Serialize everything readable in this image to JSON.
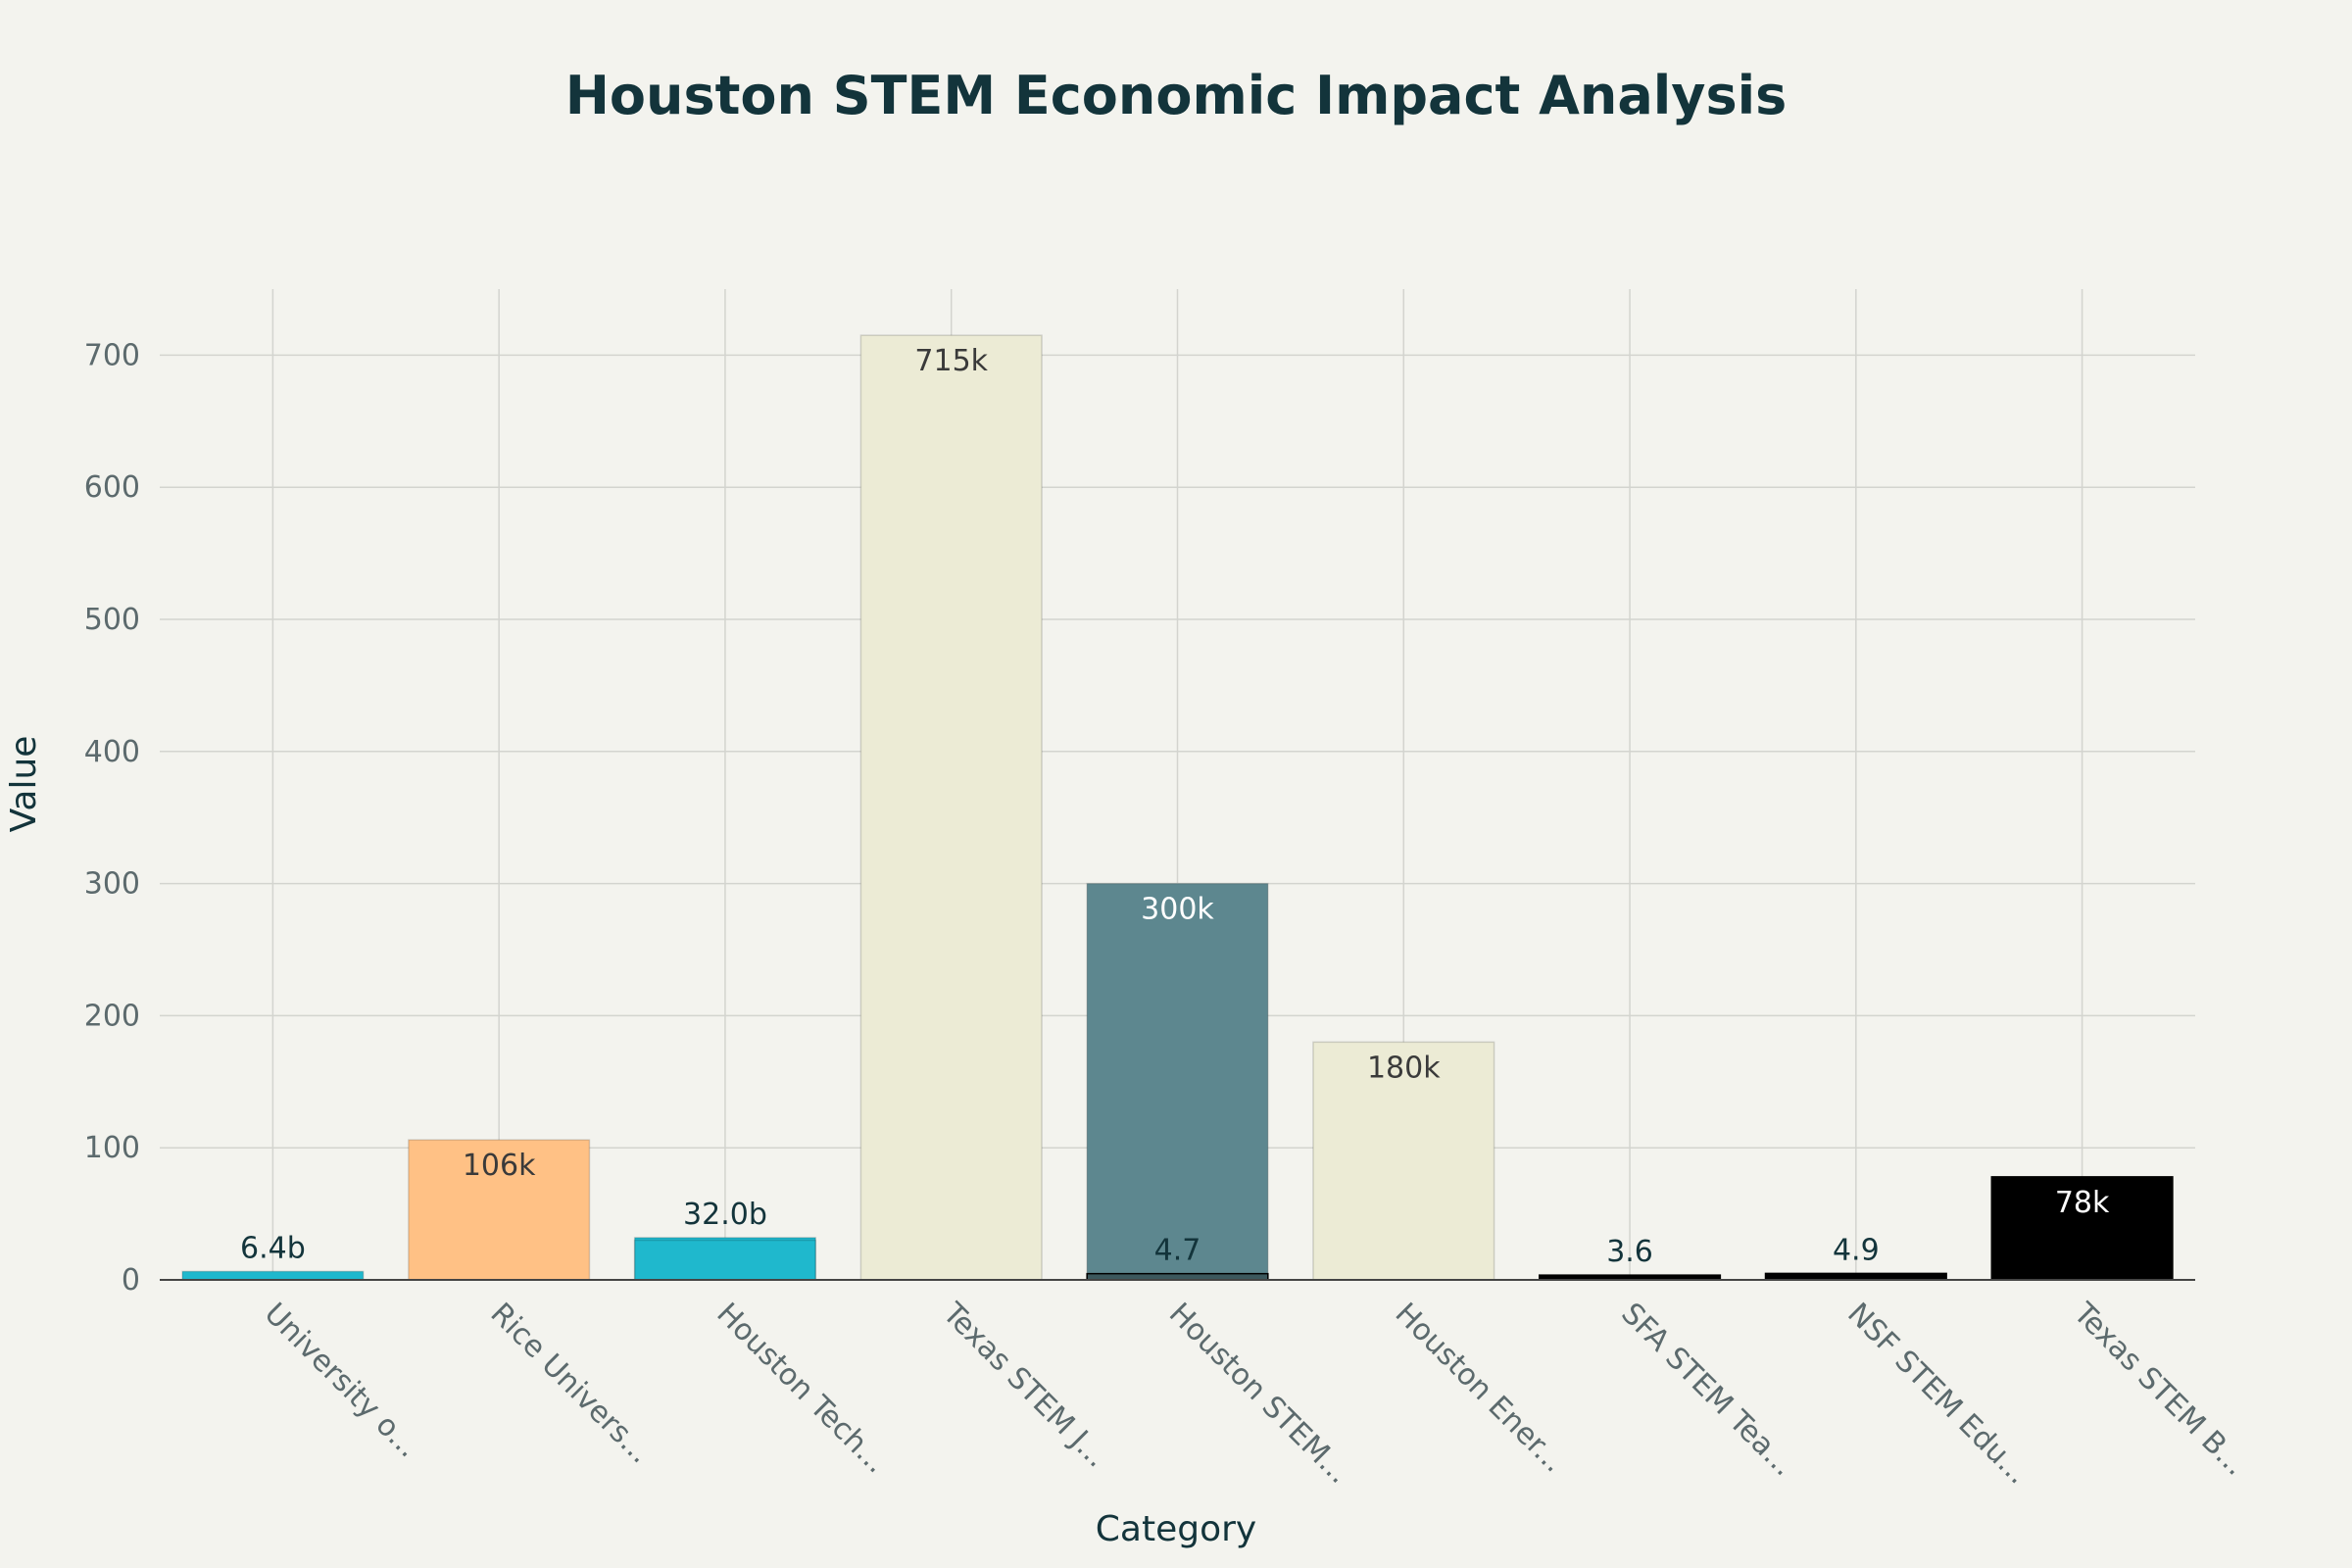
{
  "chart_data": {
    "type": "bar",
    "title": "Houston STEM Economic Impact Analysis",
    "xlabel": "Category",
    "ylabel": "Value",
    "ylim": [
      0,
      750
    ],
    "yticks": [
      0,
      100,
      200,
      300,
      400,
      500,
      600,
      700
    ],
    "grid": true,
    "categories": [
      "University o...",
      "Rice Univers...",
      "Houston Tech...",
      "Texas STEM J...",
      "Houston STEM...",
      "Houston Ener...",
      "SFA STEM Tea...",
      "NSF STEM Edu...",
      "Texas STEM B..."
    ],
    "series": [
      {
        "values": [
          6.4,
          106,
          32,
          715,
          300,
          180,
          3.6,
          4.9,
          78
        ],
        "labels": [
          "6.4b",
          "106k",
          "32.0b",
          "715k",
          "300k",
          "180k",
          "3.6",
          "4.9",
          "78k"
        ],
        "colors": [
          "#1fb8cd",
          "#ffc185",
          "#1fb8cd",
          "#ecebd5",
          "#5d878f",
          "#ecebd5",
          "#000000",
          "#000000",
          "#000000"
        ]
      },
      {
        "values": [
          null,
          null,
          30,
          null,
          4.7,
          null,
          null,
          null,
          null
        ],
        "labels": [
          "",
          "",
          "",
          "",
          "4.7",
          "",
          "",
          "",
          ""
        ],
        "colors": [
          "#1fb8cd",
          "#1fb8cd",
          "#1fb8cd",
          "#1fb8cd",
          "#000000",
          "#1fb8cd",
          "#1fb8cd",
          "#1fb8cd",
          "#1fb8cd"
        ]
      }
    ]
  }
}
